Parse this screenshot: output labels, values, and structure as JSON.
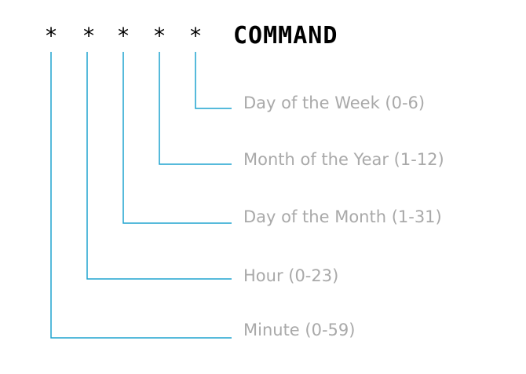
{
  "diagram": {
    "fields": [
      "*",
      "*",
      "*",
      "*",
      "*"
    ],
    "command": "COMMAND",
    "labels": [
      "Day of the Week (0-6)",
      "Month of the Year (1-12)",
      "Day of the Month (1-31)",
      "Hour (0-23)",
      "Minute (0-59)"
    ],
    "line_color": "#1fa3cf",
    "label_color": "#a9a9a9"
  }
}
